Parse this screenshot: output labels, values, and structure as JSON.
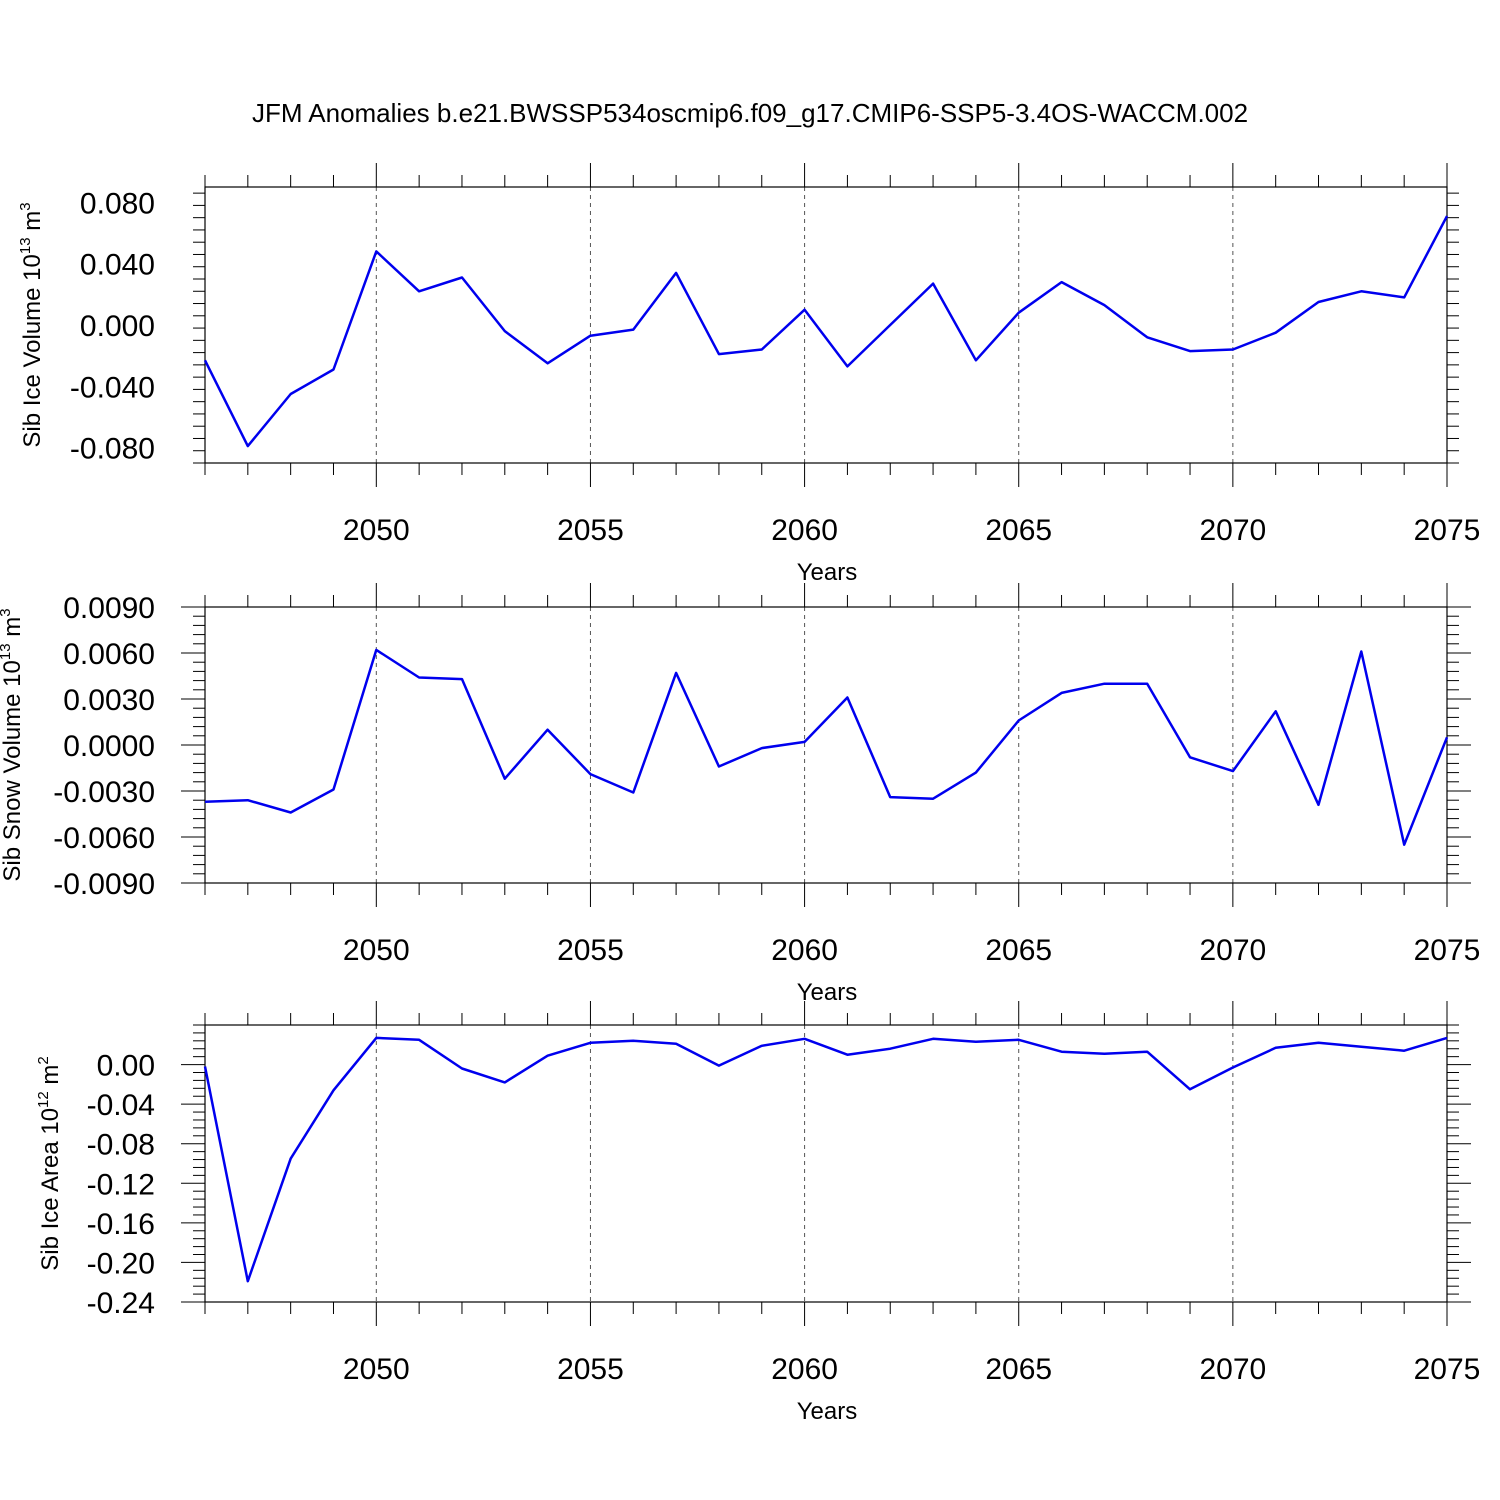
{
  "title": "JFM Anomalies b.e21.BWSSP534oscmip6.f09_g17.CMIP6-SSP5-3.4OS-WACCM.002",
  "colors": {
    "line": "#0000ee",
    "axis": "#000000",
    "grid": "#555555"
  },
  "chart_data": [
    {
      "type": "line",
      "ylabel_main": "Sib Ice Volume 10",
      "ylabel_exp": "13",
      "ylabel_unit": " m",
      "ylabel_unit_exp": "3",
      "xlabel": "Years",
      "xlim": [
        2046,
        2075
      ],
      "ylim": [
        -0.09,
        0.09
      ],
      "yticks": [
        -0.08,
        -0.04,
        0.0,
        0.04,
        0.08
      ],
      "yticklabels": [
        "-0.080",
        "-0.040",
        "0.000",
        "0.040",
        "0.080"
      ],
      "xticks": [
        2050,
        2055,
        2060,
        2065,
        2070,
        2075
      ],
      "xticklabels": [
        "2050",
        "2055",
        "2060",
        "2065",
        "2070",
        "2075"
      ],
      "grid": "vertical dashed at major x ticks",
      "x": [
        2046,
        2047,
        2048,
        2049,
        2050,
        2051,
        2052,
        2053,
        2054,
        2055,
        2056,
        2057,
        2058,
        2059,
        2060,
        2061,
        2062,
        2063,
        2064,
        2065,
        2066,
        2067,
        2068,
        2069,
        2070,
        2071,
        2072,
        2073,
        2074,
        2075
      ],
      "values": [
        -0.023,
        -0.079,
        -0.045,
        -0.029,
        0.048,
        0.022,
        0.031,
        -0.004,
        -0.025,
        -0.007,
        -0.003,
        0.034,
        -0.019,
        -0.016,
        0.01,
        -0.027,
        0.0,
        0.027,
        -0.023,
        0.008,
        0.028,
        0.013,
        -0.008,
        -0.017,
        -0.016,
        -0.005,
        0.015,
        0.022,
        0.018,
        0.071
      ]
    },
    {
      "type": "line",
      "ylabel_main": "Sib Snow Volume 10",
      "ylabel_exp": "13",
      "ylabel_unit": " m",
      "ylabel_unit_exp": "3",
      "xlabel": "Years",
      "xlim": [
        2046,
        2075
      ],
      "ylim": [
        -0.009,
        0.009
      ],
      "yticks": [
        -0.009,
        -0.006,
        -0.003,
        0.0,
        0.003,
        0.006,
        0.009
      ],
      "yticklabels": [
        "-0.0090",
        "-0.0060",
        "-0.0030",
        "0.0000",
        "0.0030",
        "0.0060",
        "0.0090"
      ],
      "xticks": [
        2050,
        2055,
        2060,
        2065,
        2070,
        2075
      ],
      "xticklabels": [
        "2050",
        "2055",
        "2060",
        "2065",
        "2070",
        "2075"
      ],
      "grid": "vertical dashed at major x ticks",
      "x": [
        2046,
        2047,
        2048,
        2049,
        2050,
        2051,
        2052,
        2053,
        2054,
        2055,
        2056,
        2057,
        2058,
        2059,
        2060,
        2061,
        2062,
        2063,
        2064,
        2065,
        2066,
        2067,
        2068,
        2069,
        2070,
        2071,
        2072,
        2073,
        2074,
        2075
      ],
      "values": [
        -0.0037,
        -0.0036,
        -0.0044,
        -0.0029,
        0.0062,
        0.0044,
        0.0043,
        -0.0022,
        0.001,
        -0.0019,
        -0.0031,
        0.0047,
        -0.0014,
        -0.0002,
        0.0002,
        0.0031,
        -0.0034,
        -0.0035,
        -0.0018,
        0.0016,
        0.0034,
        0.004,
        0.004,
        -0.0008,
        -0.0017,
        0.0022,
        -0.0039,
        0.0061,
        -0.0065,
        0.0005
      ]
    },
    {
      "type": "line",
      "ylabel_main": "Sib Ice Area 10",
      "ylabel_exp": "12",
      "ylabel_unit": " m",
      "ylabel_unit_exp": "2",
      "xlabel": "Years",
      "xlim": [
        2046,
        2075
      ],
      "ylim": [
        -0.24,
        0.04
      ],
      "yticks": [
        -0.24,
        -0.2,
        -0.16,
        -0.12,
        -0.08,
        -0.04,
        0.0
      ],
      "yticklabels": [
        "-0.24",
        "-0.20",
        "-0.16",
        "-0.12",
        "-0.08",
        "-0.04",
        "0.00"
      ],
      "xticks": [
        2050,
        2055,
        2060,
        2065,
        2070,
        2075
      ],
      "xticklabels": [
        "2050",
        "2055",
        "2060",
        "2065",
        "2070",
        "2075"
      ],
      "grid": "vertical dashed at major x ticks",
      "x": [
        2046,
        2047,
        2048,
        2049,
        2050,
        2051,
        2052,
        2053,
        2054,
        2055,
        2056,
        2057,
        2058,
        2059,
        2060,
        2061,
        2062,
        2063,
        2064,
        2065,
        2066,
        2067,
        2068,
        2069,
        2070,
        2071,
        2072,
        2073,
        2074,
        2075
      ],
      "values": [
        -0.002,
        -0.219,
        -0.095,
        -0.026,
        0.027,
        0.025,
        -0.004,
        -0.018,
        0.009,
        0.022,
        0.024,
        0.021,
        -0.001,
        0.019,
        0.026,
        0.01,
        0.016,
        0.026,
        0.023,
        0.025,
        0.013,
        0.011,
        0.013,
        -0.025,
        -0.003,
        0.017,
        0.022,
        0.018,
        0.014,
        0.027
      ]
    }
  ]
}
